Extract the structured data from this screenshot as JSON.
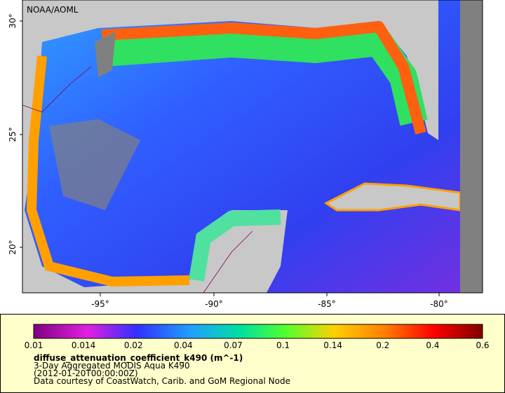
{
  "map": {
    "attribution": "NOAA/AOML",
    "lat_labels": [
      "30°",
      "25°",
      "20°"
    ],
    "lon_labels": [
      "-95°",
      "-90°",
      "-85°",
      "-80°"
    ]
  },
  "legend": {
    "colorbar_ticks": [
      "0.01",
      "0.014",
      "0.02",
      "0.04",
      "0.07",
      "0.1",
      "0.14",
      "0.2",
      "0.4",
      "0.6"
    ],
    "title": "diffuse_attenuation_coefficient_k490 (m^-1)",
    "subtitle": "3-Day Aggregated MODIS Aqua K490",
    "time": "(2012-01-20T00:00:00Z)",
    "credit": "Data courtesy of CoastWatch, Carib. and GoM Regional Node"
  }
}
